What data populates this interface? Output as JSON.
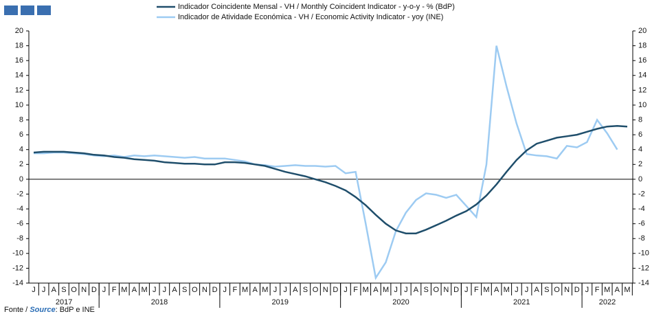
{
  "chart_data": {
    "type": "line",
    "categories": [
      "J",
      "J",
      "A",
      "S",
      "O",
      "N",
      "D",
      "J",
      "F",
      "M",
      "A",
      "M",
      "J",
      "J",
      "A",
      "S",
      "O",
      "N",
      "D",
      "J",
      "F",
      "M",
      "A",
      "M",
      "J",
      "J",
      "A",
      "S",
      "O",
      "N",
      "D",
      "J",
      "F",
      "M",
      "A",
      "M",
      "J",
      "J",
      "A",
      "S",
      "O",
      "N",
      "D",
      "J",
      "F",
      "M",
      "A",
      "M",
      "J",
      "J",
      "A",
      "S",
      "O",
      "N",
      "D",
      "J",
      "F",
      "M",
      "A",
      "M"
    ],
    "years": [
      "2017",
      "2018",
      "2019",
      "2020",
      "2021",
      "2022"
    ],
    "series": [
      {
        "name": "Indicador Coincidente Mensal - VH / Monthly Coincident Indicator - y-o-y - % (BdP)",
        "color": "#1f4e6b",
        "values": [
          3.6,
          3.7,
          3.7,
          3.7,
          3.6,
          3.5,
          3.3,
          3.2,
          3.0,
          2.9,
          2.7,
          2.6,
          2.5,
          2.3,
          2.2,
          2.1,
          2.1,
          2.0,
          2.0,
          2.3,
          2.3,
          2.2,
          2.0,
          1.8,
          1.4,
          1.0,
          0.7,
          0.4,
          0.0,
          -0.4,
          -0.9,
          -1.5,
          -2.4,
          -3.5,
          -4.8,
          -6.0,
          -6.9,
          -7.3,
          -7.3,
          -6.8,
          -6.2,
          -5.6,
          -4.9,
          -4.3,
          -3.4,
          -2.2,
          -0.7,
          1.0,
          2.6,
          3.9,
          4.8,
          5.2,
          5.6,
          5.8,
          6.0,
          6.4,
          6.8,
          7.1,
          7.2,
          7.1
        ]
      },
      {
        "name": "Indicador de Atividade Económica - VH / Economic Activity Indicator - yoy (INE)",
        "color": "#9dcbf2",
        "values": [
          3.5,
          3.5,
          3.6,
          3.6,
          3.5,
          3.4,
          3.2,
          3.1,
          3.2,
          3.0,
          3.2,
          3.1,
          3.2,
          3.1,
          3.0,
          2.9,
          3.0,
          2.8,
          2.8,
          2.8,
          2.6,
          2.4,
          2.0,
          1.9,
          1.7,
          1.8,
          1.9,
          1.8,
          1.8,
          1.7,
          1.8,
          0.8,
          1.0,
          -6.0,
          -13.3,
          -11.2,
          -7.0,
          -4.5,
          -2.8,
          -1.9,
          -2.1,
          -2.5,
          -2.1,
          -3.6,
          -5.1,
          2.0,
          18.0,
          12.5,
          7.5,
          3.4,
          3.2,
          3.1,
          2.8,
          4.5,
          4.3,
          5.0,
          8.0,
          6.2,
          4.0,
          null
        ]
      }
    ],
    "ylim": [
      -14,
      20
    ],
    "yticks": [
      -14,
      -12,
      -10,
      -8,
      -6,
      -4,
      -2,
      0,
      2,
      4,
      6,
      8,
      10,
      12,
      14,
      16,
      18,
      20
    ],
    "zero_line": true,
    "source": {
      "pt": "Fonte /",
      "en": "Source",
      "rest": ": BdP e INE"
    }
  }
}
